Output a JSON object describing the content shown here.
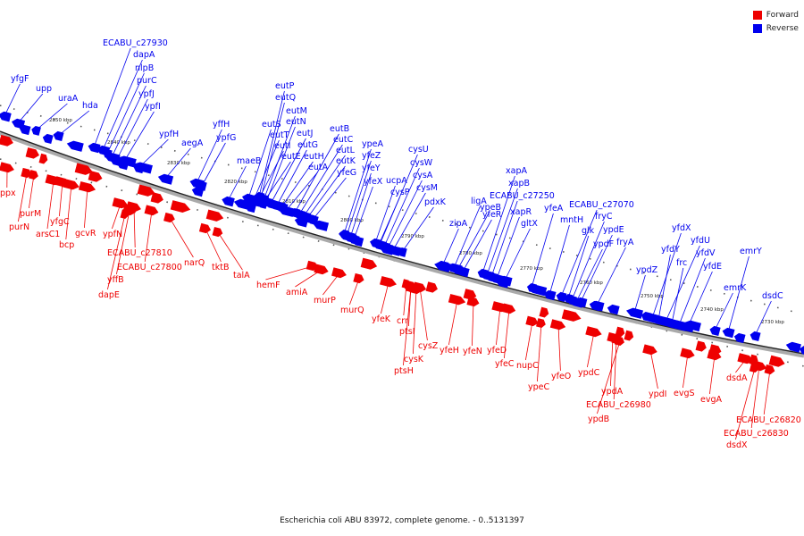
{
  "caption": "Escherichia coli ABU 83972, complete genome. - 0..5131397",
  "legend": [
    {
      "label": "Forward",
      "color": "#ee0000"
    },
    {
      "label": "Reverse",
      "color": "#0000ee"
    }
  ],
  "ticks": [
    "2850 kbp",
    "2840 kbp",
    "2830 kbp",
    "2820 kbp",
    "2810 kbp",
    "2800 kbp",
    "2790 kbp",
    "2780 kbp",
    "2770 kbp",
    "2760 kbp",
    "2750 kbp",
    "2740 kbp",
    "2730 kbp"
  ],
  "genes_reverse": [
    "yfgF",
    "upp",
    "uraA",
    "hda",
    "ECABU_c27930",
    "dapA",
    "nlpB",
    "purC",
    "ypfJ",
    "ypfI",
    "ypfH",
    "aegA",
    "yffH",
    "ypfG",
    "maeB",
    "eutP",
    "eutQ",
    "eutM",
    "eutS",
    "eutN",
    "eutT",
    "eutJ",
    "eutI",
    "eutG",
    "eutE",
    "eutH",
    "eutA",
    "eutB",
    "eutC",
    "eutL",
    "eutK",
    "yfeG",
    "ypeA",
    "yfeZ",
    "yfeY",
    "yfeX",
    "cysU",
    "cysW",
    "cysA",
    "cysM",
    "ucpA",
    "cysP",
    "pdxK",
    "zipA",
    "ypeB",
    "ligA",
    "yfeR",
    "xapA",
    "xapB",
    "ECABU_c27250",
    "xapR",
    "gltX",
    "yfeA",
    "ECABU_c27070",
    "mntH",
    "fryC",
    "glk",
    "ypdE",
    "ypdF",
    "fryA",
    "ypdZ",
    "yfdX",
    "yfdY",
    "yfdU",
    "frc",
    "yfdV",
    "yfdE",
    "emrY",
    "emrK",
    "dsdC"
  ],
  "genes_forward": [
    "ppx",
    "purM",
    "purN",
    "yfgC",
    "arsC1",
    "gcvR",
    "bcp",
    "ypfN",
    "ECABU_c27810",
    "ECABU_c27800",
    "yffB",
    "dapE",
    "narQ",
    "tktB",
    "talA",
    "hemF",
    "amiA",
    "murP",
    "murQ",
    "yfeK",
    "crr",
    "ptsI",
    "cysZ",
    "cysK",
    "ptsH",
    "yfeH",
    "yfeN",
    "yfeD",
    "yfeC",
    "nupC",
    "ypeC",
    "yfeO",
    "ypdC",
    "ypdA",
    "ECABU_c26980",
    "ypdB",
    "ypdI",
    "evgS",
    "evgA",
    "dsdA",
    "ECABU_c26820",
    "ECABU_c26830",
    "dsdX"
  ]
}
